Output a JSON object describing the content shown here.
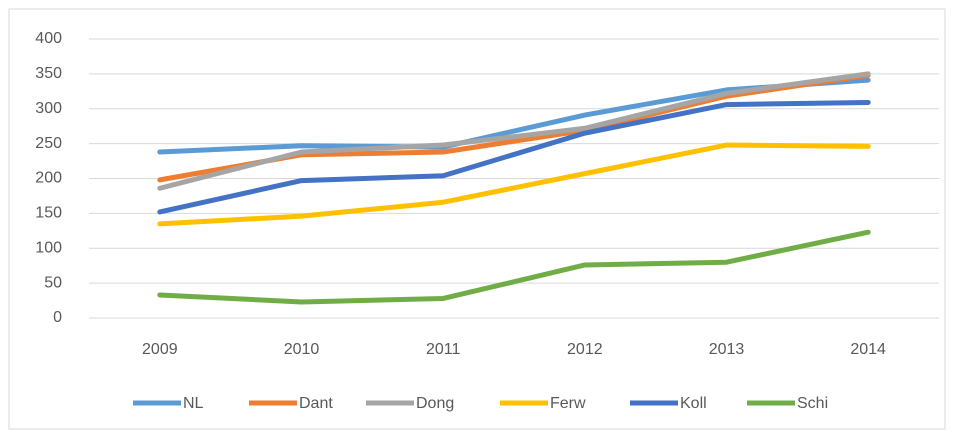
{
  "chart_data": {
    "type": "line",
    "x": [
      "2009",
      "2010",
      "2011",
      "2012",
      "2013",
      "2014"
    ],
    "series": [
      {
        "name": "NL",
        "color": "#5b9bd5",
        "values": [
          238,
          247,
          245,
          291,
          327,
          341
        ]
      },
      {
        "name": "Dant",
        "color": "#ed7d31",
        "values": [
          198,
          234,
          238,
          269,
          318,
          348
        ]
      },
      {
        "name": "Dong",
        "color": "#a5a5a5",
        "values": [
          186,
          238,
          248,
          272,
          322,
          350
        ]
      },
      {
        "name": "Ferw",
        "color": "#ffc000",
        "values": [
          135,
          146,
          166,
          207,
          248,
          246
        ]
      },
      {
        "name": "Koll",
        "color": "#4472c4",
        "values": [
          152,
          197,
          204,
          265,
          306,
          309
        ]
      },
      {
        "name": "Schi",
        "color": "#70ad47",
        "values": [
          33,
          23,
          28,
          76,
          80,
          123
        ]
      }
    ],
    "ylim": [
      0,
      400
    ],
    "yticks": [
      0,
      50,
      100,
      150,
      200,
      250,
      300,
      350,
      400
    ],
    "grid": true,
    "legend": "bottom"
  }
}
